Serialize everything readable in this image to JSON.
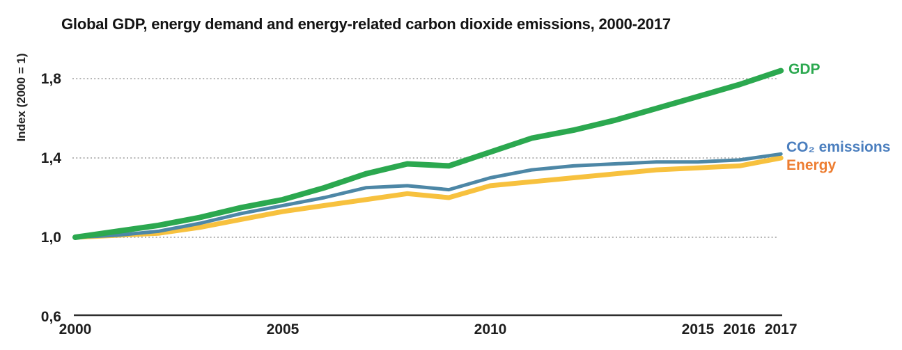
{
  "title": "Global GDP, energy demand and energy-related carbon dioxide emissions, 2000-2017",
  "y_axis_title": "Index (2000 = 1)",
  "chart_data": {
    "type": "line",
    "x": [
      2000,
      2001,
      2002,
      2003,
      2004,
      2005,
      2006,
      2007,
      2008,
      2009,
      2010,
      2011,
      2012,
      2013,
      2014,
      2015,
      2016,
      2017
    ],
    "series": [
      {
        "name": "Energy",
        "color": "#F7C13E",
        "label_color": "#ED7D31",
        "stroke_width": 7,
        "values": [
          1.0,
          1.01,
          1.02,
          1.05,
          1.09,
          1.13,
          1.16,
          1.19,
          1.22,
          1.2,
          1.26,
          1.28,
          1.3,
          1.32,
          1.34,
          1.35,
          1.36,
          1.4
        ]
      },
      {
        "name": "CO₂ emissions",
        "color": "#4D87A6",
        "label_color": "#4A7EBE",
        "stroke_width": 5,
        "values": [
          1.0,
          1.01,
          1.03,
          1.07,
          1.12,
          1.16,
          1.2,
          1.25,
          1.26,
          1.24,
          1.3,
          1.34,
          1.36,
          1.37,
          1.38,
          1.38,
          1.39,
          1.42
        ]
      },
      {
        "name": "GDP",
        "color": "#2BA84F",
        "label_color": "#2BA84F",
        "stroke_width": 8,
        "values": [
          1.0,
          1.03,
          1.06,
          1.1,
          1.15,
          1.19,
          1.25,
          1.32,
          1.37,
          1.36,
          1.43,
          1.5,
          1.54,
          1.59,
          1.65,
          1.71,
          1.77,
          1.84
        ]
      }
    ],
    "yticks": [
      {
        "label": "1,8",
        "value": 1.8,
        "gridline": true
      },
      {
        "label": "1,4",
        "value": 1.4,
        "gridline": true
      },
      {
        "label": "1,0",
        "value": 1.0,
        "gridline": true
      },
      {
        "label": "0,6",
        "value": 0.6,
        "gridline": false
      }
    ],
    "xticks": [
      {
        "label": "2000",
        "value": 2000
      },
      {
        "label": "2005",
        "value": 2005
      },
      {
        "label": "2010",
        "value": 2010
      },
      {
        "label": "2015",
        "value": 2015
      },
      {
        "label": "2016",
        "value": 2016
      },
      {
        "label": "2017",
        "value": 2017
      }
    ],
    "xlim": [
      2000,
      2017
    ],
    "ylim": [
      0.6,
      1.9
    ],
    "grid": "horizontal-dotted",
    "legend_position": "right-of-line-ends",
    "colors": {
      "gridline": "#ABABAB",
      "axis": "#2E2E2E",
      "text": "#1D1D1D"
    }
  }
}
